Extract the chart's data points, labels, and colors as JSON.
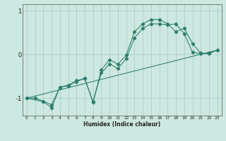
{
  "xlabel": "Humidex (Indice chaleur)",
  "background_color": "#cce8e0",
  "grid_color": "#aacfc8",
  "line_color": "#2e7d6e",
  "xlim": [
    -0.5,
    23.5
  ],
  "ylim": [
    -1.4,
    1.15
  ],
  "yticks": [
    -1,
    0,
    1
  ],
  "xticks": [
    0,
    1,
    2,
    3,
    4,
    5,
    6,
    7,
    8,
    9,
    10,
    11,
    12,
    13,
    14,
    15,
    16,
    17,
    18,
    19,
    20,
    21,
    22,
    23
  ],
  "line1_x": [
    0,
    1,
    2,
    3,
    4,
    5,
    6,
    7,
    8,
    9,
    10,
    11,
    12,
    13,
    14,
    15,
    16,
    17,
    18,
    19,
    20,
    21,
    22,
    23
  ],
  "line1_y": [
    -1.0,
    -1.0,
    -1.07,
    -1.15,
    -0.75,
    -0.72,
    -0.62,
    -0.55,
    -1.08,
    -0.42,
    -0.22,
    -0.32,
    -0.1,
    0.38,
    0.6,
    0.7,
    0.7,
    0.68,
    0.7,
    0.48,
    0.05,
    0.02,
    0.02,
    0.1
  ],
  "line2_x": [
    0,
    2,
    3,
    4,
    5,
    6,
    7,
    8,
    9,
    10,
    11,
    12,
    13,
    14,
    15,
    16,
    17,
    18,
    19,
    20,
    21,
    22,
    23
  ],
  "line2_y": [
    -1.0,
    -1.08,
    -1.22,
    -0.75,
    -0.7,
    -0.6,
    -0.55,
    -1.1,
    -0.35,
    -0.12,
    -0.22,
    -0.02,
    0.52,
    0.7,
    0.8,
    0.8,
    0.7,
    0.52,
    0.6,
    0.25,
    0.03,
    0.03,
    0.1
  ],
  "line3_x": [
    0,
    23
  ],
  "line3_y": [
    -1.0,
    0.1
  ]
}
